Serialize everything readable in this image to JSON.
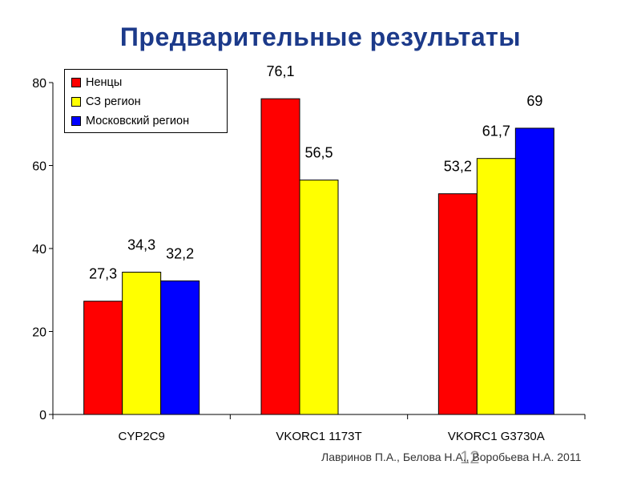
{
  "slide": {
    "title": "Предварительные результаты",
    "footer": "Лавринов П.А., Белова Н.А., Воробьева Н.А. 2011",
    "page_number": "12"
  },
  "chart_data": {
    "type": "bar",
    "categories": [
      "CYP2C9",
      "VKORC1 1173T",
      "VKORC1 G3730A"
    ],
    "series": [
      {
        "name": "Ненцы",
        "color": "#ff0000",
        "values": [
          27.3,
          76.1,
          53.2
        ],
        "labels": [
          "27,3",
          "76,1",
          "53,2"
        ]
      },
      {
        "name": "СЗ регион",
        "color": "#ffff00",
        "values": [
          34.3,
          56.5,
          61.7
        ],
        "labels": [
          "34,3",
          "56,5",
          "61,7"
        ]
      },
      {
        "name": "Московский регион",
        "color": "#0000ff",
        "values": [
          32.2,
          null,
          69
        ],
        "labels": [
          "32,2",
          null,
          "69"
        ]
      }
    ],
    "ylim": [
      0,
      80
    ],
    "yticks": [
      0,
      20,
      40,
      60,
      80
    ],
    "xlabel": "",
    "ylabel": "",
    "grid": false,
    "legend_position": "top-left"
  }
}
